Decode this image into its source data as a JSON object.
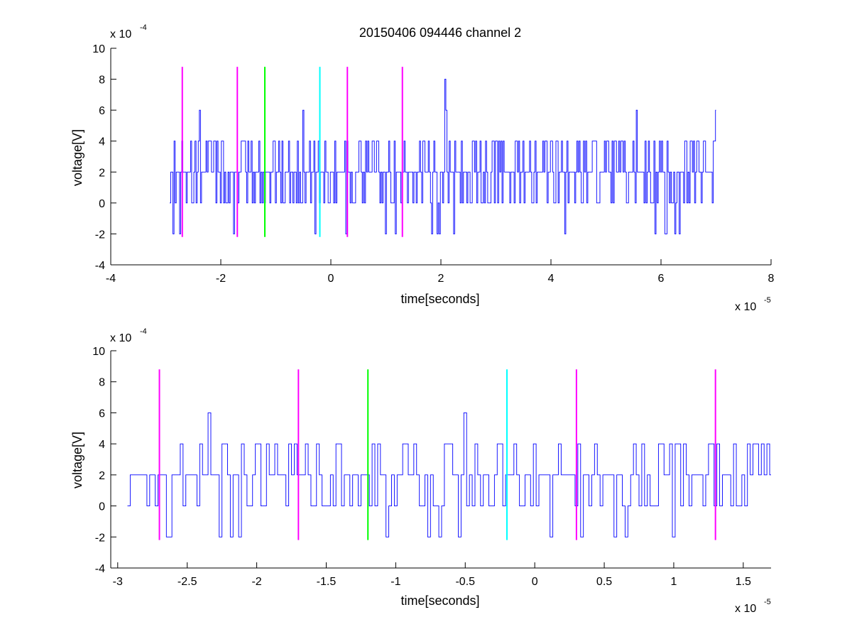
{
  "chart_data": [
    {
      "type": "line",
      "title": "20150406 094446 channel 2",
      "xlabel": "time[seconds]",
      "ylabel": "voltage[V]",
      "x_multiplier_label": "x 10",
      "x_multiplier_exp": "-5",
      "y_multiplier_label": "x 10",
      "y_multiplier_exp": "-4",
      "xlim": [
        -4,
        8
      ],
      "ylim": [
        -4,
        10
      ],
      "xticks": [
        -4,
        -2,
        0,
        2,
        4,
        6,
        8
      ],
      "xtick_labels": [
        "-4",
        "-2",
        "0",
        "2",
        "4",
        "6",
        "8"
      ],
      "yticks": [
        -4,
        -2,
        0,
        2,
        4,
        6,
        8,
        10
      ],
      "ytick_labels": [
        "-4",
        "-2",
        "0",
        "2",
        "4",
        "6",
        "8",
        "10"
      ],
      "grid": false,
      "series": [
        {
          "color": "#0000ff",
          "x_range": [
            -2.93,
            7.0
          ],
          "sample_step": 0.02,
          "levels": [
            -2,
            0,
            2,
            4,
            6,
            8
          ],
          "peaks": [
            {
              "x": -2.38,
              "y": 6
            },
            {
              "x": -0.5,
              "y": 6
            },
            {
              "x": 2.07,
              "y": 8
            },
            {
              "x": 2.1,
              "y": 6
            },
            {
              "x": 5.55,
              "y": 6
            },
            {
              "x": 6.98,
              "y": 6
            }
          ]
        }
      ],
      "markers": [
        {
          "x": -2.7,
          "y_range": [
            -2.2,
            8.8
          ],
          "color": "#ff00ff"
        },
        {
          "x": -1.7,
          "y_range": [
            -2.2,
            8.8
          ],
          "color": "#ff00ff"
        },
        {
          "x": -1.2,
          "y_range": [
            -2.2,
            8.8
          ],
          "color": "#00ff00"
        },
        {
          "x": -0.2,
          "y_range": [
            -2.2,
            8.8
          ],
          "color": "#00ffff"
        },
        {
          "x": 0.3,
          "y_range": [
            -2.2,
            8.8
          ],
          "color": "#ff00ff"
        },
        {
          "x": 1.3,
          "y_range": [
            -2.2,
            8.8
          ],
          "color": "#ff00ff"
        }
      ]
    },
    {
      "type": "line",
      "title": "",
      "xlabel": "time[seconds]",
      "ylabel": "voltage[V]",
      "x_multiplier_label": "x 10",
      "x_multiplier_exp": "-5",
      "y_multiplier_label": "x 10",
      "y_multiplier_exp": "-4",
      "xlim": [
        -3.05,
        1.7
      ],
      "ylim": [
        -4,
        10
      ],
      "xticks": [
        -3,
        -2.5,
        -2,
        -1.5,
        -1,
        -0.5,
        0,
        0.5,
        1,
        1.5
      ],
      "xtick_labels": [
        "-3",
        "-2.5",
        "-2",
        "-1.5",
        "-1",
        "-0.5",
        "0",
        "0.5",
        "1",
        "1.5"
      ],
      "yticks": [
        -4,
        -2,
        0,
        2,
        4,
        6,
        8,
        10
      ],
      "ytick_labels": [
        "-4",
        "-2",
        "0",
        "2",
        "4",
        "6",
        "8",
        "10"
      ],
      "grid": false,
      "series": [
        {
          "color": "#0000ff",
          "x_range": [
            -2.93,
            1.7
          ],
          "sample_step": 0.02,
          "levels": [
            -2,
            0,
            2,
            4,
            6
          ],
          "peaks": [
            {
              "x": -2.35,
              "y": 6
            },
            {
              "x": -0.5,
              "y": 6
            }
          ]
        }
      ],
      "markers": [
        {
          "x": -2.7,
          "y_range": [
            -2.2,
            8.8
          ],
          "color": "#ff00ff"
        },
        {
          "x": -1.7,
          "y_range": [
            -2.2,
            8.8
          ],
          "color": "#ff00ff"
        },
        {
          "x": -1.2,
          "y_range": [
            -2.2,
            8.8
          ],
          "color": "#00ff00"
        },
        {
          "x": -0.2,
          "y_range": [
            -2.2,
            8.8
          ],
          "color": "#00ffff"
        },
        {
          "x": 0.3,
          "y_range": [
            -2.2,
            8.8
          ],
          "color": "#ff00ff"
        },
        {
          "x": 1.3,
          "y_range": [
            -2.2,
            8.8
          ],
          "color": "#ff00ff"
        }
      ]
    }
  ]
}
